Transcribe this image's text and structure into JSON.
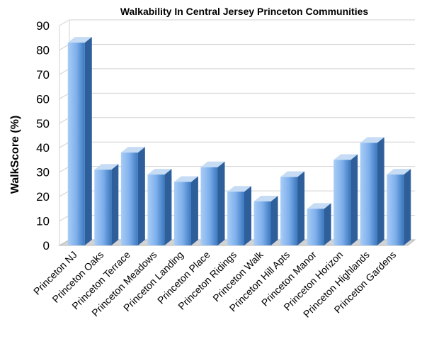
{
  "chart_data": {
    "type": "bar",
    "title": "Walkability In Central Jersey Princeton Communities",
    "xlabel": "",
    "ylabel": "WalkScore (%)",
    "ylim": [
      0,
      90
    ],
    "yticks": [
      0,
      10,
      20,
      30,
      40,
      50,
      60,
      70,
      80,
      90
    ],
    "grid": true,
    "legend": "none",
    "style": "3d-column",
    "categories": [
      "Princeton NJ",
      "Princeton Oaks",
      "Princeton Terrace",
      "Princeton Meadows",
      "Princeton Landing",
      "Princeton Place",
      "Princeton Ridings",
      "Princeton Walk",
      "Princeton Hill Apts",
      "Princeton Manor",
      "Princeton Horizon",
      "Princeton Highlands",
      "Princeton Gardens"
    ],
    "values": [
      83,
      31,
      38,
      29,
      26,
      32,
      22,
      18,
      28,
      15,
      35,
      42,
      29
    ],
    "colors": {
      "bar_light": "#a9cdf6",
      "bar_dark": "#3b78bf",
      "bar_top": "#c6dcf5",
      "bar_side": "#2e5f9b",
      "floor": "#d4d4d4"
    }
  }
}
